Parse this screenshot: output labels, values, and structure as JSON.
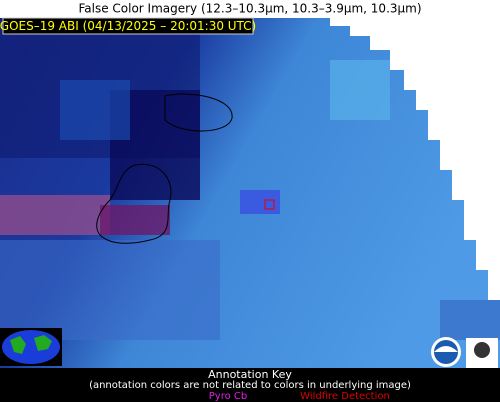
{
  "header": {
    "title": "False Color Imagery (12.3–10.3µm, 10.3–3.9µm, 10.3µm)"
  },
  "image_label": "GOES–19 ABI (04/13/2025 – 20:01:30 UTC)",
  "key": {
    "title": "Annotation Key",
    "note": "(annotation colors are not related to colors in underlying image)",
    "items": [
      "Pyro Cb",
      "Wildfire Detection"
    ]
  }
}
